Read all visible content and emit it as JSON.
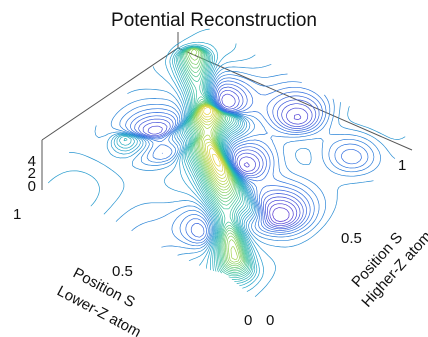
{
  "chart_data": {
    "type": "contour3d",
    "title": "Potential Reconstruction",
    "x_axis": {
      "label_line1": "Position S",
      "label_line2": "Lower-Z atom",
      "ticks": [
        "1",
        "0.5",
        "0"
      ],
      "range": [
        0,
        1
      ]
    },
    "y_axis": {
      "label_line1": "Position S",
      "label_line2": "Higher-Z atom",
      "ticks": [
        "0",
        "0.5",
        "1"
      ],
      "range": [
        0,
        1
      ]
    },
    "z_axis": {
      "ticks": [
        "4",
        "2",
        "0"
      ],
      "range": [
        0,
        4
      ]
    },
    "colormap": [
      "#5a2bd0",
      "#2f6fe0",
      "#22a6c8",
      "#3cc39a",
      "#9fd34a",
      "#f2d23b"
    ],
    "wells": [
      {
        "s_lower": 0.78,
        "s_higher": 0.46,
        "depth": 0.9
      },
      {
        "s_lower": 0.72,
        "s_higher": 0.76,
        "depth": 0.8
      },
      {
        "s_lower": 0.46,
        "s_higher": 0.55,
        "depth": 0.8
      },
      {
        "s_lower": 0.43,
        "s_higher": 0.87,
        "depth": 0.6
      },
      {
        "s_lower": 0.21,
        "s_higher": 0.43,
        "depth": 0.7
      },
      {
        "s_lower": 0.36,
        "s_higher": 0.2,
        "depth": 0.6
      },
      {
        "s_lower": 0.15,
        "s_higher": 0.82,
        "depth": 0.5
      }
    ],
    "ridges": [
      {
        "from": [
          0.15,
          0.06
        ],
        "to": [
          0.88,
          0.82
        ],
        "height": 1.0
      },
      {
        "from": [
          0.85,
          0.35
        ],
        "to": [
          0.6,
          0.65
        ],
        "height": 0.6
      },
      {
        "from": [
          0.3,
          0.35
        ],
        "to": [
          0.6,
          0.45
        ],
        "height": 0.5
      }
    ]
  }
}
